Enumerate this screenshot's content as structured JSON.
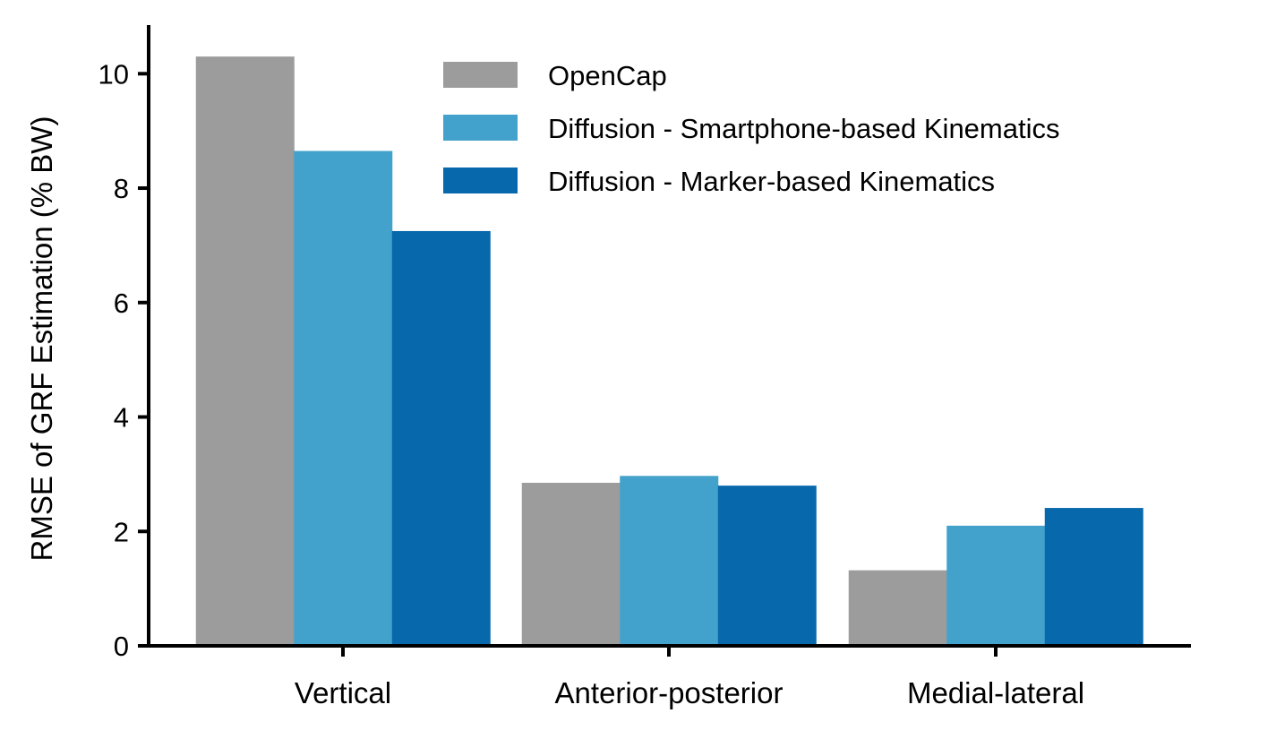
{
  "chart_data": {
    "type": "bar",
    "title": "",
    "xlabel": "",
    "ylabel": "RMSE of GRF Estimation (% BW)",
    "categories": [
      "Vertical",
      "Anterior-posterior",
      "Medial-lateral"
    ],
    "series": [
      {
        "name": "OpenCap",
        "color": "#9c9c9c",
        "values": [
          10.3,
          2.85,
          1.32
        ]
      },
      {
        "name": "Diffusion - Smartphone-based Kinematics",
        "color": "#43a2cb",
        "values": [
          8.65,
          2.97,
          2.1
        ]
      },
      {
        "name": "Diffusion - Marker-based Kinematics",
        "color": "#0868ac",
        "values": [
          7.25,
          2.8,
          2.41
        ]
      }
    ],
    "ylim": [
      0,
      10.85
    ],
    "yticks": [
      0,
      2,
      4,
      6,
      8,
      10
    ],
    "legend": {
      "placement": "top-right"
    },
    "grid": false
  }
}
